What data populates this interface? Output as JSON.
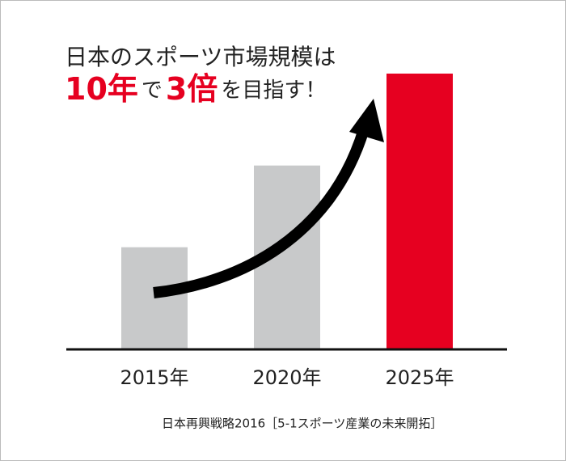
{
  "chart_data": {
    "type": "bar",
    "title": "日本のスポーツ市場規模は",
    "subtitle_parts": [
      "10年",
      "で",
      "3倍",
      "を目指す！"
    ],
    "subtitle_colors": [
      "#e60020",
      "#222222",
      "#e60020",
      "#222222"
    ],
    "categories": [
      "2015年",
      "2020年",
      "2025年"
    ],
    "values": [
      1,
      1.8,
      2.7
    ],
    "colors": [
      "#c8c9ca",
      "#c8c9ca",
      "#e60020"
    ],
    "ylim": [
      0,
      2.7
    ],
    "source": "日本再興戦略2016［5-1スポーツ産業の未来開拓］"
  }
}
